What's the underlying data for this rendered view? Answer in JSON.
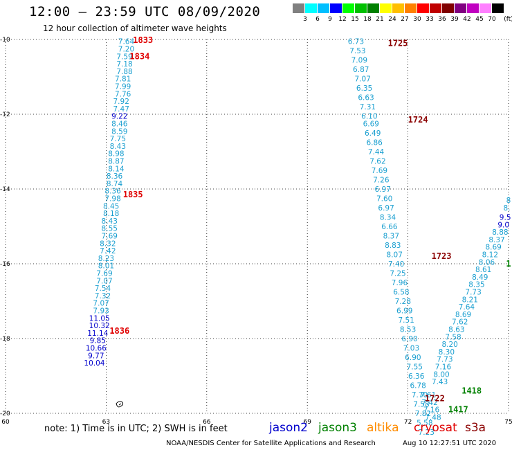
{
  "title": "12:00 – 23:59 UTC 08/09/2020",
  "subtitle": "12 hour collection of altimeter wave heights",
  "colorbar": {
    "unit": "(ft)",
    "colors": [
      "#808080",
      "#00ffff",
      "#00bfff",
      "#0000ff",
      "#00ff00",
      "#00c000",
      "#008000",
      "#ffff00",
      "#ffbf00",
      "#ff8000",
      "#ff0000",
      "#c00000",
      "#800000",
      "#800080",
      "#c000c0",
      "#ff80ff",
      "#000000"
    ],
    "labels": [
      "3",
      "6",
      "9",
      "12",
      "15",
      "18",
      "21",
      "24",
      "27",
      "30",
      "33",
      "36",
      "39",
      "42",
      "45",
      "70"
    ]
  },
  "axes": {
    "x_ticks": [
      "60",
      "63",
      "66",
      "69",
      "72",
      "75"
    ],
    "y_ticks": [
      "-10",
      "-12",
      "-14",
      "-16",
      "-18",
      "-20"
    ],
    "xlim": [
      60,
      75
    ],
    "ylim": [
      -20,
      -10
    ]
  },
  "satellite_colors": {
    "jason3": "#1a9fd0",
    "jason2": "#0000cc",
    "s3a": "#8b0000",
    "cryosat": "#e00000",
    "altika": "#ff8c00",
    "jason3_text": "#008000"
  },
  "tracks": [
    {
      "id": "track-63",
      "readings": [
        {
          "lon": 63.6,
          "lat": -10.05,
          "v": "7.64",
          "c": "jason3"
        },
        {
          "lon": 63.6,
          "lat": -10.25,
          "v": "7.20",
          "c": "jason3"
        },
        {
          "lon": 63.55,
          "lat": -10.45,
          "v": "7.59",
          "c": "jason3"
        },
        {
          "lon": 63.55,
          "lat": -10.65,
          "v": "7.18",
          "c": "jason3"
        },
        {
          "lon": 63.55,
          "lat": -10.85,
          "v": "7.88",
          "c": "jason3"
        },
        {
          "lon": 63.5,
          "lat": -11.05,
          "v": "7.81",
          "c": "jason3"
        },
        {
          "lon": 63.5,
          "lat": -11.25,
          "v": "7.99",
          "c": "jason3"
        },
        {
          "lon": 63.5,
          "lat": -11.45,
          "v": "7.76",
          "c": "jason3"
        },
        {
          "lon": 63.45,
          "lat": -11.65,
          "v": "7.92",
          "c": "jason3"
        },
        {
          "lon": 63.45,
          "lat": -11.85,
          "v": "7.47",
          "c": "jason3"
        },
        {
          "lon": 63.4,
          "lat": -12.05,
          "v": "9.22",
          "c": "jason2"
        },
        {
          "lon": 63.4,
          "lat": -12.25,
          "v": "8.46",
          "c": "jason3"
        },
        {
          "lon": 63.4,
          "lat": -12.45,
          "v": "8.59",
          "c": "jason3"
        },
        {
          "lon": 63.35,
          "lat": -12.65,
          "v": "7.75",
          "c": "jason3"
        },
        {
          "lon": 63.35,
          "lat": -12.85,
          "v": "8.43",
          "c": "jason3"
        },
        {
          "lon": 63.3,
          "lat": -13.05,
          "v": "8.98",
          "c": "jason3"
        },
        {
          "lon": 63.3,
          "lat": -13.25,
          "v": "8.87",
          "c": "jason3"
        },
        {
          "lon": 63.3,
          "lat": -13.45,
          "v": "8.14",
          "c": "jason3"
        },
        {
          "lon": 63.25,
          "lat": -13.65,
          "v": "8.36",
          "c": "jason3"
        },
        {
          "lon": 63.25,
          "lat": -13.85,
          "v": "8.74",
          "c": "jason3"
        },
        {
          "lon": 63.2,
          "lat": -14.05,
          "v": "8.36",
          "c": "jason3"
        },
        {
          "lon": 63.2,
          "lat": -14.25,
          "v": "7.98",
          "c": "jason3"
        },
        {
          "lon": 63.15,
          "lat": -14.45,
          "v": "8.45",
          "c": "jason3"
        },
        {
          "lon": 63.15,
          "lat": -14.65,
          "v": "8.18",
          "c": "jason3"
        },
        {
          "lon": 63.1,
          "lat": -14.85,
          "v": "8.43",
          "c": "jason3"
        },
        {
          "lon": 63.1,
          "lat": -15.05,
          "v": "8.55",
          "c": "jason3"
        },
        {
          "lon": 63.1,
          "lat": -15.25,
          "v": "7.69",
          "c": "jason3"
        },
        {
          "lon": 63.05,
          "lat": -15.45,
          "v": "8.32",
          "c": "jason3"
        },
        {
          "lon": 63.05,
          "lat": -15.65,
          "v": "7.42",
          "c": "jason3"
        },
        {
          "lon": 63.0,
          "lat": -15.85,
          "v": "8.23",
          "c": "jason3"
        },
        {
          "lon": 63.0,
          "lat": -16.05,
          "v": "8.01",
          "c": "jason3"
        },
        {
          "lon": 62.95,
          "lat": -16.25,
          "v": "7.69",
          "c": "jason3"
        },
        {
          "lon": 62.95,
          "lat": -16.45,
          "v": "7.07",
          "c": "jason3"
        },
        {
          "lon": 62.9,
          "lat": -16.65,
          "v": "7.54",
          "c": "jason3"
        },
        {
          "lon": 62.9,
          "lat": -16.85,
          "v": "7.32",
          "c": "jason3"
        },
        {
          "lon": 62.85,
          "lat": -17.05,
          "v": "7.07",
          "c": "jason3"
        },
        {
          "lon": 62.85,
          "lat": -17.25,
          "v": "7.93",
          "c": "jason3"
        },
        {
          "lon": 62.8,
          "lat": -17.45,
          "v": "11.05",
          "c": "jason2"
        },
        {
          "lon": 62.8,
          "lat": -17.65,
          "v": "10.32",
          "c": "jason2"
        },
        {
          "lon": 62.75,
          "lat": -17.85,
          "v": "11.14",
          "c": "jason2"
        },
        {
          "lon": 62.75,
          "lat": -18.05,
          "v": "9.85",
          "c": "jason2"
        },
        {
          "lon": 62.7,
          "lat": -18.25,
          "v": "10.66",
          "c": "jason2"
        },
        {
          "lon": 62.7,
          "lat": -18.45,
          "v": "9.77",
          "c": "jason2"
        },
        {
          "lon": 62.65,
          "lat": -18.65,
          "v": "10.04",
          "c": "jason2"
        }
      ]
    },
    {
      "id": "track-70-72",
      "readings": [
        {
          "lon": 70.45,
          "lat": -10.05,
          "v": "6.73",
          "c": "jason3"
        },
        {
          "lon": 70.5,
          "lat": -10.3,
          "v": "7.53",
          "c": "jason3"
        },
        {
          "lon": 70.55,
          "lat": -10.55,
          "v": "7.09",
          "c": "jason3"
        },
        {
          "lon": 70.6,
          "lat": -10.8,
          "v": "6.87",
          "c": "jason3"
        },
        {
          "lon": 70.65,
          "lat": -11.05,
          "v": "7.07",
          "c": "jason3"
        },
        {
          "lon": 70.7,
          "lat": -11.3,
          "v": "6.35",
          "c": "jason3"
        },
        {
          "lon": 70.75,
          "lat": -11.55,
          "v": "6.63",
          "c": "jason3"
        },
        {
          "lon": 70.8,
          "lat": -11.8,
          "v": "7.31",
          "c": "jason3"
        },
        {
          "lon": 70.85,
          "lat": -12.05,
          "v": "6.10",
          "c": "jason3"
        },
        {
          "lon": 70.9,
          "lat": -12.25,
          "v": "6.69",
          "c": "jason3"
        },
        {
          "lon": 70.95,
          "lat": -12.5,
          "v": "6.49",
          "c": "jason3"
        },
        {
          "lon": 71.0,
          "lat": -12.75,
          "v": "6.86",
          "c": "jason3"
        },
        {
          "lon": 71.05,
          "lat": -13.0,
          "v": "7.44",
          "c": "jason3"
        },
        {
          "lon": 71.1,
          "lat": -13.25,
          "v": "7.62",
          "c": "jason3"
        },
        {
          "lon": 71.15,
          "lat": -13.5,
          "v": "7.69",
          "c": "jason3"
        },
        {
          "lon": 71.2,
          "lat": -13.75,
          "v": "7.26",
          "c": "jason3"
        },
        {
          "lon": 71.25,
          "lat": -14.0,
          "v": "6.97",
          "c": "jason3"
        },
        {
          "lon": 71.3,
          "lat": -14.25,
          "v": "7.60",
          "c": "jason3"
        },
        {
          "lon": 71.35,
          "lat": -14.5,
          "v": "6.97",
          "c": "jason3"
        },
        {
          "lon": 71.4,
          "lat": -14.75,
          "v": "8.34",
          "c": "jason3"
        },
        {
          "lon": 71.45,
          "lat": -15.0,
          "v": "6.66",
          "c": "jason3"
        },
        {
          "lon": 71.5,
          "lat": -15.25,
          "v": "8.37",
          "c": "jason3"
        },
        {
          "lon": 71.55,
          "lat": -15.5,
          "v": "8.83",
          "c": "jason3"
        },
        {
          "lon": 71.6,
          "lat": -15.75,
          "v": "8.07",
          "c": "jason3"
        },
        {
          "lon": 71.65,
          "lat": -16.0,
          "v": "7.40",
          "c": "jason3"
        },
        {
          "lon": 71.7,
          "lat": -16.25,
          "v": "7.25",
          "c": "jason3"
        },
        {
          "lon": 71.75,
          "lat": -16.5,
          "v": "7.96",
          "c": "jason3"
        },
        {
          "lon": 71.8,
          "lat": -16.75,
          "v": "6.58",
          "c": "jason3"
        },
        {
          "lon": 71.85,
          "lat": -17.0,
          "v": "7.28",
          "c": "jason3"
        },
        {
          "lon": 71.9,
          "lat": -17.25,
          "v": "6.99",
          "c": "jason3"
        },
        {
          "lon": 71.95,
          "lat": -17.5,
          "v": "7.51",
          "c": "jason3"
        },
        {
          "lon": 72.0,
          "lat": -17.75,
          "v": "8.53",
          "c": "jason3"
        },
        {
          "lon": 72.05,
          "lat": -18.0,
          "v": "6.90",
          "c": "jason3"
        },
        {
          "lon": 72.1,
          "lat": -18.25,
          "v": "7.03",
          "c": "jason3"
        },
        {
          "lon": 72.15,
          "lat": -18.5,
          "v": "6.90",
          "c": "jason3"
        },
        {
          "lon": 72.2,
          "lat": -18.75,
          "v": "7.55",
          "c": "jason3"
        },
        {
          "lon": 72.25,
          "lat": -19.0,
          "v": "6.36",
          "c": "jason3"
        },
        {
          "lon": 72.3,
          "lat": -19.25,
          "v": "6.78",
          "c": "jason3"
        },
        {
          "lon": 72.35,
          "lat": -19.5,
          "v": "7.70",
          "c": "jason3"
        },
        {
          "lon": 72.4,
          "lat": -19.75,
          "v": "7.58",
          "c": "jason3"
        },
        {
          "lon": 72.45,
          "lat": -20.0,
          "v": "7.82",
          "c": "jason3"
        },
        {
          "lon": 72.5,
          "lat": -20.25,
          "v": "5.58",
          "c": "jason3"
        },
        {
          "lon": 72.55,
          "lat": -20.5,
          "v": "7.23",
          "c": "jason3"
        }
      ]
    },
    {
      "id": "track-72-75",
      "readings": [
        {
          "lon": 72.6,
          "lat": -19.5,
          "v": "7.61",
          "c": "jason3"
        },
        {
          "lon": 72.65,
          "lat": -19.7,
          "v": "7.42",
          "c": "jason3"
        },
        {
          "lon": 72.7,
          "lat": -19.9,
          "v": "7.16",
          "c": "jason3"
        },
        {
          "lon": 72.75,
          "lat": -20.1,
          "v": "7.48",
          "c": "jason3"
        },
        {
          "lon": 72.95,
          "lat": -19.15,
          "v": "7.43",
          "c": "jason3"
        },
        {
          "lon": 73.0,
          "lat": -18.95,
          "v": "8.00",
          "c": "jason3"
        },
        {
          "lon": 73.05,
          "lat": -18.75,
          "v": "7.16",
          "c": "jason3"
        },
        {
          "lon": 73.1,
          "lat": -18.55,
          "v": "7.73",
          "c": "jason3"
        },
        {
          "lon": 73.15,
          "lat": -18.35,
          "v": "8.30",
          "c": "jason3"
        },
        {
          "lon": 73.25,
          "lat": -18.15,
          "v": "8.20",
          "c": "jason3"
        },
        {
          "lon": 73.35,
          "lat": -17.95,
          "v": "7.58",
          "c": "jason3"
        },
        {
          "lon": 73.45,
          "lat": -17.75,
          "v": "8.63",
          "c": "jason3"
        },
        {
          "lon": 73.55,
          "lat": -17.55,
          "v": "7.62",
          "c": "jason3"
        },
        {
          "lon": 73.65,
          "lat": -17.35,
          "v": "8.69",
          "c": "jason3"
        },
        {
          "lon": 73.75,
          "lat": -17.15,
          "v": "7.64",
          "c": "jason3"
        },
        {
          "lon": 73.85,
          "lat": -16.95,
          "v": "8.21",
          "c": "jason3"
        },
        {
          "lon": 73.95,
          "lat": -16.75,
          "v": "7.73",
          "c": "jason3"
        },
        {
          "lon": 74.05,
          "lat": -16.55,
          "v": "8.35",
          "c": "jason3"
        },
        {
          "lon": 74.15,
          "lat": -16.35,
          "v": "8.49",
          "c": "jason3"
        },
        {
          "lon": 74.25,
          "lat": -16.15,
          "v": "8.61",
          "c": "jason3"
        },
        {
          "lon": 74.35,
          "lat": -15.95,
          "v": "8.06",
          "c": "jason3"
        },
        {
          "lon": 74.45,
          "lat": -15.75,
          "v": "8.12",
          "c": "jason3"
        },
        {
          "lon": 74.55,
          "lat": -15.55,
          "v": "8.69",
          "c": "jason3"
        },
        {
          "lon": 74.65,
          "lat": -15.35,
          "v": "8.37",
          "c": "jason3"
        },
        {
          "lon": 74.75,
          "lat": -15.15,
          "v": "8.88",
          "c": "jason3"
        },
        {
          "lon": 74.85,
          "lat": -14.95,
          "v": "9.0",
          "c": "jason2"
        },
        {
          "lon": 74.9,
          "lat": -14.75,
          "v": "9.5",
          "c": "jason2"
        },
        {
          "lon": 74.95,
          "lat": -14.5,
          "v": "8.",
          "c": "jason3"
        },
        {
          "lon": 75.0,
          "lat": -14.3,
          "v": "8",
          "c": "jason3"
        }
      ]
    }
  ],
  "time_labels": [
    {
      "lon": 64.1,
      "lat": -10.02,
      "t": "1833",
      "c": "cryosat"
    },
    {
      "lon": 64.0,
      "lat": -10.45,
      "t": "1834",
      "c": "cryosat"
    },
    {
      "lon": 63.8,
      "lat": -14.15,
      "t": "1835",
      "c": "cryosat"
    },
    {
      "lon": 63.4,
      "lat": -17.8,
      "t": "1836",
      "c": "cryosat"
    },
    {
      "lon": 71.7,
      "lat": -10.1,
      "t": "1725",
      "c": "s3a"
    },
    {
      "lon": 72.3,
      "lat": -12.15,
      "t": "1724",
      "c": "s3a"
    },
    {
      "lon": 73.0,
      "lat": -15.8,
      "t": "1723",
      "c": "s3a"
    },
    {
      "lon": 72.8,
      "lat": -19.6,
      "t": "1722",
      "c": "s3a"
    },
    {
      "lon": 73.9,
      "lat": -19.4,
      "t": "1418",
      "c": "jason3_text"
    },
    {
      "lon": 73.5,
      "lat": -19.9,
      "t": "1417",
      "c": "jason3_text"
    },
    {
      "lon": 75.0,
      "lat": -16.0,
      "t": "1",
      "c": "jason3_text"
    }
  ],
  "note": "note: 1) Time is in UTC; 2) SWH is in feet",
  "legend": [
    {
      "name": "jason2",
      "color": "#0000cc"
    },
    {
      "name": "jason3",
      "color": "#008000"
    },
    {
      "name": "altika",
      "color": "#ff8c00"
    },
    {
      "name": "cryosat",
      "color": "#e00000"
    },
    {
      "name": "s3a",
      "color": "#8b0000"
    }
  ],
  "credit": "NOAA/NESDIS Center for Satellite Applications and Research",
  "timestamp": "Aug 10 12:27:51 UTC 2020"
}
